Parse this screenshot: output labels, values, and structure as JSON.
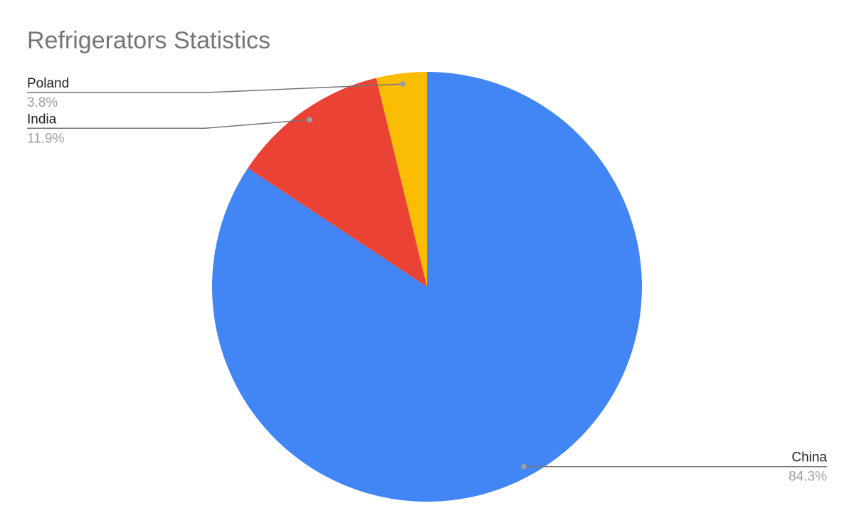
{
  "chart_data": {
    "type": "pie",
    "title": "Refrigerators Statistics",
    "categories": [
      "China",
      "India",
      "Poland"
    ],
    "values": [
      84.3,
      11.9,
      3.8
    ],
    "value_labels": [
      "84.3%",
      "11.9%",
      "3.8%"
    ],
    "colors": [
      "#4285f4",
      "#ea4335",
      "#fbbc04"
    ]
  }
}
